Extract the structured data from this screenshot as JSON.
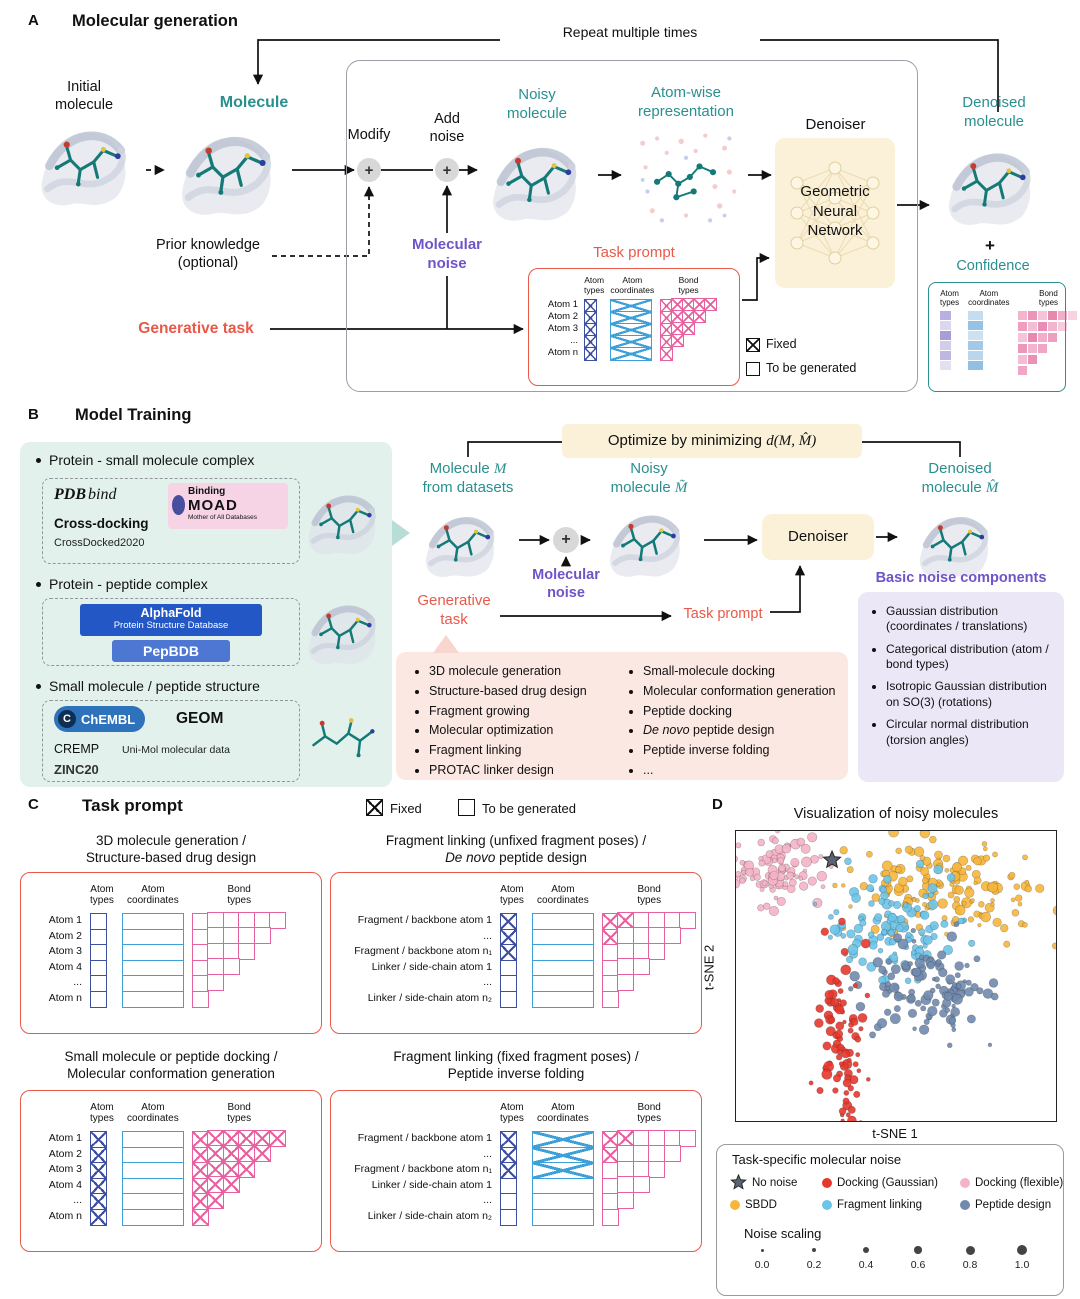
{
  "panelA": {
    "label": "A",
    "title": "Molecular generation",
    "repeat": "Repeat multiple times",
    "initial": "Initial\nmolecule",
    "molecule": "Molecule",
    "modify": "Modify",
    "add_noise": "Add\nnoise",
    "noisy": "Noisy\nmolecule",
    "atomwise": "Atom-wise\nrepresentation",
    "denoiser": "Denoiser",
    "gnn": "Geometric\nNeural\nNetwork",
    "denoised": "Denoised\nmolecule",
    "plus": "+",
    "confidence": "Confidence",
    "prior": "Prior knowledge\n(optional)",
    "mol_noise": "Molecular\nnoise",
    "gen_task": "Generative task",
    "task_prompt_title": "Task prompt",
    "legend_fixed": "Fixed",
    "legend_tbg": "To be generated",
    "task_matrix": {
      "headers": [
        "Atom\ntypes",
        "Atom\ncoordinates",
        "Bond\ntypes"
      ],
      "rows": [
        "Atom 1",
        "Atom 2",
        "Atom 3",
        "...",
        "Atom n"
      ],
      "types": [
        "x",
        "x",
        "x",
        "x",
        "x"
      ],
      "coords": [
        "x",
        "x",
        "x",
        "x",
        "x"
      ],
      "bond": [
        [
          "x",
          "x",
          "x",
          "x",
          "x"
        ],
        [
          "x",
          "x",
          "x",
          "x"
        ],
        [
          "x",
          "x",
          "x"
        ],
        [
          "x",
          "x"
        ],
        [
          "x"
        ]
      ]
    },
    "confidence_panel": {
      "headers": [
        "Atom\ntypes",
        "Atom\ncoordinates",
        "Bond\ntypes"
      ],
      "atom_types": [
        0.55,
        0.28,
        0.68,
        0.35,
        0.5,
        0.22
      ],
      "atom_coordinates": [
        0.35,
        0.62,
        0.3,
        0.55,
        0.42,
        0.65
      ],
      "bond_types": [
        [
          0.5,
          0.72,
          0.4,
          0.82,
          0.55,
          0.3
        ],
        [
          0.65,
          0.45,
          0.78,
          0.5,
          0.35
        ],
        [
          0.4,
          0.8,
          0.55,
          0.65
        ],
        [
          0.7,
          0.5,
          0.6
        ],
        [
          0.45,
          0.75
        ],
        [
          0.6
        ]
      ]
    }
  },
  "panelB": {
    "label": "B",
    "title": "Model Training",
    "bullets": [
      "Protein - small molecule complex",
      "Protein - peptide complex",
      "Small molecule / peptide structure"
    ],
    "logos": {
      "pdb": "PDB",
      "bind": "bind",
      "binding": "Binding",
      "moad": "MOAD",
      "moad_sub": "Mother of All Databases",
      "crossdocking": "Cross-docking",
      "crossdocked": "CrossDocked2020",
      "alphafold_l1": "AlphaFold",
      "alphafold_l2": "Protein Structure Database",
      "pepbdb": "PepBDB",
      "chembl_c": "C",
      "chembl": "ChEMBL",
      "geom": "GEOM",
      "cremp": "CREMP",
      "unimol": "Uni-Mol molecular data",
      "zinc": "ZINC20"
    },
    "optimize_prefix": "Optimize by minimizing",
    "optimize_math": "d(M, M̂)",
    "mol_m": {
      "pre": "Molecule ",
      "m": "M",
      "l2": "from datasets"
    },
    "noisy": {
      "l1": "Noisy",
      "l2pre": "molecule ",
      "m": "M̃"
    },
    "denoised": {
      "l1": "Denoised",
      "l2pre": "molecule ",
      "m": "M̂"
    },
    "denoiser": "Denoiser",
    "mol_noise": "Molecular\nnoise",
    "gen_task": "Generative\ntask",
    "task_prompt": "Task prompt",
    "tasks_col1": [
      {
        "t": "3D molecule generation"
      },
      {
        "t": "Structure-based drug design"
      },
      {
        "t": "Fragment growing"
      },
      {
        "t": "Molecular optimization"
      },
      {
        "t": "Fragment linking"
      },
      {
        "t": "PROTAC linker design"
      }
    ],
    "tasks_col2": [
      {
        "t": "Small-molecule docking"
      },
      {
        "t": "Molecular conformation generation"
      },
      {
        "t": "Peptide docking"
      },
      {
        "i": "De novo",
        "t": " peptide design"
      },
      {
        "t": "Peptide inverse folding"
      },
      {
        "t": "..."
      }
    ],
    "noise_title": "Basic noise components",
    "noise_items": [
      "Gaussian distribution (coordinates / translations)",
      "Categorical distribution (atom / bond types)",
      "Isotropic Gaussian distribution on SO(3) (rotations)",
      "Circular normal distribution (torsion angles)"
    ]
  },
  "panelC": {
    "label": "C",
    "title": "Task prompt",
    "legend_fixed": "Fixed",
    "legend_tbg": "To be generated",
    "boxes": [
      {
        "title1": "3D molecule generation /",
        "title2": "Structure-based drug design",
        "matrix": {
          "headers": [
            "Atom\ntypes",
            "Atom\ncoordinates",
            "Bond\ntypes"
          ],
          "rows": [
            "Atom 1",
            "Atom 2",
            "Atom 3",
            "Atom 4",
            "...",
            "Atom n"
          ],
          "types": [
            "o",
            "o",
            "o",
            "o",
            "o",
            "o"
          ],
          "coords": [
            "o",
            "o",
            "o",
            "o",
            "o",
            "o"
          ],
          "bond": [
            [
              "o",
              "o",
              "o",
              "o",
              "o",
              "o"
            ],
            [
              "o",
              "o",
              "o",
              "o",
              "o"
            ],
            [
              "o",
              "o",
              "o",
              "o"
            ],
            [
              "o",
              "o",
              "o"
            ],
            [
              "o",
              "o"
            ],
            [
              "o"
            ]
          ]
        }
      },
      {
        "title1": "Fragment linking (unfixed fragment poses) /",
        "title2i": "De novo",
        "title2": " peptide design",
        "matrix": {
          "headers": [
            "Atom\ntypes",
            "Atom\ncoordinates",
            "Bond\ntypes"
          ],
          "rows": [
            "Fragment / backbone atom 1",
            "...",
            "Fragment / backbone atom n₁",
            "Linker / side-chain atom 1",
            "...",
            "Linker / side-chain atom n₂"
          ],
          "types": [
            "x",
            "x",
            "x",
            "o",
            "o",
            "o"
          ],
          "coords": [
            "o",
            "o",
            "o",
            "o",
            "o",
            "o"
          ],
          "bond": [
            [
              "x",
              "x",
              "o",
              "o",
              "o",
              "o"
            ],
            [
              "x",
              "o",
              "o",
              "o",
              "o"
            ],
            [
              "o",
              "o",
              "o",
              "o"
            ],
            [
              "o",
              "o",
              "o"
            ],
            [
              "o",
              "o"
            ],
            [
              "o"
            ]
          ]
        }
      },
      {
        "title1": "Small molecule or peptide docking /",
        "title2": "Molecular conformation generation",
        "matrix": {
          "headers": [
            "Atom\ntypes",
            "Atom\ncoordinates",
            "Bond\ntypes"
          ],
          "rows": [
            "Atom 1",
            "Atom 2",
            "Atom 3",
            "Atom 4",
            "...",
            "Atom n"
          ],
          "types": [
            "x",
            "x",
            "x",
            "x",
            "x",
            "x"
          ],
          "coords": [
            "o",
            "o",
            "o",
            "o",
            "o",
            "o"
          ],
          "bond": [
            [
              "x",
              "x",
              "x",
              "x",
              "x",
              "x"
            ],
            [
              "x",
              "x",
              "x",
              "x",
              "x"
            ],
            [
              "x",
              "x",
              "x",
              "x"
            ],
            [
              "x",
              "x",
              "x"
            ],
            [
              "x",
              "x"
            ],
            [
              "x"
            ]
          ]
        }
      },
      {
        "title1": "Fragment linking (fixed fragment poses) /",
        "title2": "Peptide inverse folding",
        "matrix": {
          "headers": [
            "Atom\ntypes",
            "Atom\ncoordinates",
            "Bond\ntypes"
          ],
          "rows": [
            "Fragment / backbone atom 1",
            "...",
            "Fragment / backbone atom n₁",
            "Linker / side-chain atom 1",
            "...",
            "Linker / side-chain atom n₂"
          ],
          "types": [
            "x",
            "x",
            "x",
            "o",
            "o",
            "o"
          ],
          "coords": [
            "x",
            "x",
            "x",
            "o",
            "o",
            "o"
          ],
          "bond": [
            [
              "x",
              "x",
              "o",
              "o",
              "o",
              "o"
            ],
            [
              "x",
              "o",
              "o",
              "o",
              "o"
            ],
            [
              "o",
              "o",
              "o",
              "o"
            ],
            [
              "o",
              "o",
              "o"
            ],
            [
              "o",
              "o"
            ],
            [
              "o"
            ]
          ]
        }
      }
    ]
  },
  "panelD": {
    "label": "D",
    "title": "Visualization of noisy molecules",
    "xlabel": "t-SNE 1",
    "ylabel": "t-SNE 2",
    "legend": {
      "title": "Task-specific molecular noise",
      "entries": [
        {
          "marker": "star",
          "label": "No noise",
          "color": "#5a6472"
        },
        {
          "marker": "dot",
          "label": "Docking (Gaussian)",
          "color": "#e6372c"
        },
        {
          "marker": "dot",
          "label": "Docking (flexible)",
          "color": "#f5b3c6"
        },
        {
          "marker": "dot",
          "label": "SBDD",
          "color": "#f6b63c"
        },
        {
          "marker": "dot",
          "label": "Fragment linking",
          "color": "#6cc4e9"
        },
        {
          "marker": "dot",
          "label": "Peptide design",
          "color": "#7089ad"
        }
      ],
      "noise_label": "Noise scaling",
      "noise_values": [
        "0.0",
        "0.2",
        "0.4",
        "0.6",
        "0.8",
        "1.0"
      ]
    }
  },
  "chart_data": {
    "type": "scatter",
    "title": "Visualization of noisy molecules",
    "xlabel": "t-SNE 1",
    "ylabel": "t-SNE 2",
    "legend_position": "bottom",
    "series": [
      {
        "name": "Docking (flexible)",
        "color": "#f5b3c6",
        "cluster": {
          "cx": 0.13,
          "cy": 0.13,
          "sx": 0.065,
          "sy": 0.06,
          "n": 90
        }
      },
      {
        "name": "SBDD",
        "color": "#f6b63c",
        "cluster": {
          "cx": 0.66,
          "cy": 0.2,
          "sx": 0.15,
          "sy": 0.09,
          "n": 160
        }
      },
      {
        "name": "Fragment linking",
        "color": "#6cc4e9",
        "cluster": {
          "cx": 0.48,
          "cy": 0.33,
          "sx": 0.12,
          "sy": 0.09,
          "n": 115
        }
      },
      {
        "name": "Peptide design",
        "color": "#7089ad",
        "cluster": {
          "cx": 0.6,
          "cy": 0.54,
          "sx": 0.1,
          "sy": 0.1,
          "n": 115
        }
      },
      {
        "name": "Docking (Gaussian)",
        "color": "#e6372c",
        "cluster": {
          "cx": 0.335,
          "cy": 0.7,
          "sx": 0.04,
          "sy": 0.15,
          "n": 85
        }
      },
      {
        "name": "No noise",
        "marker": "star",
        "color": "#5a6472",
        "point": [
          0.3,
          0.1
        ]
      }
    ]
  }
}
